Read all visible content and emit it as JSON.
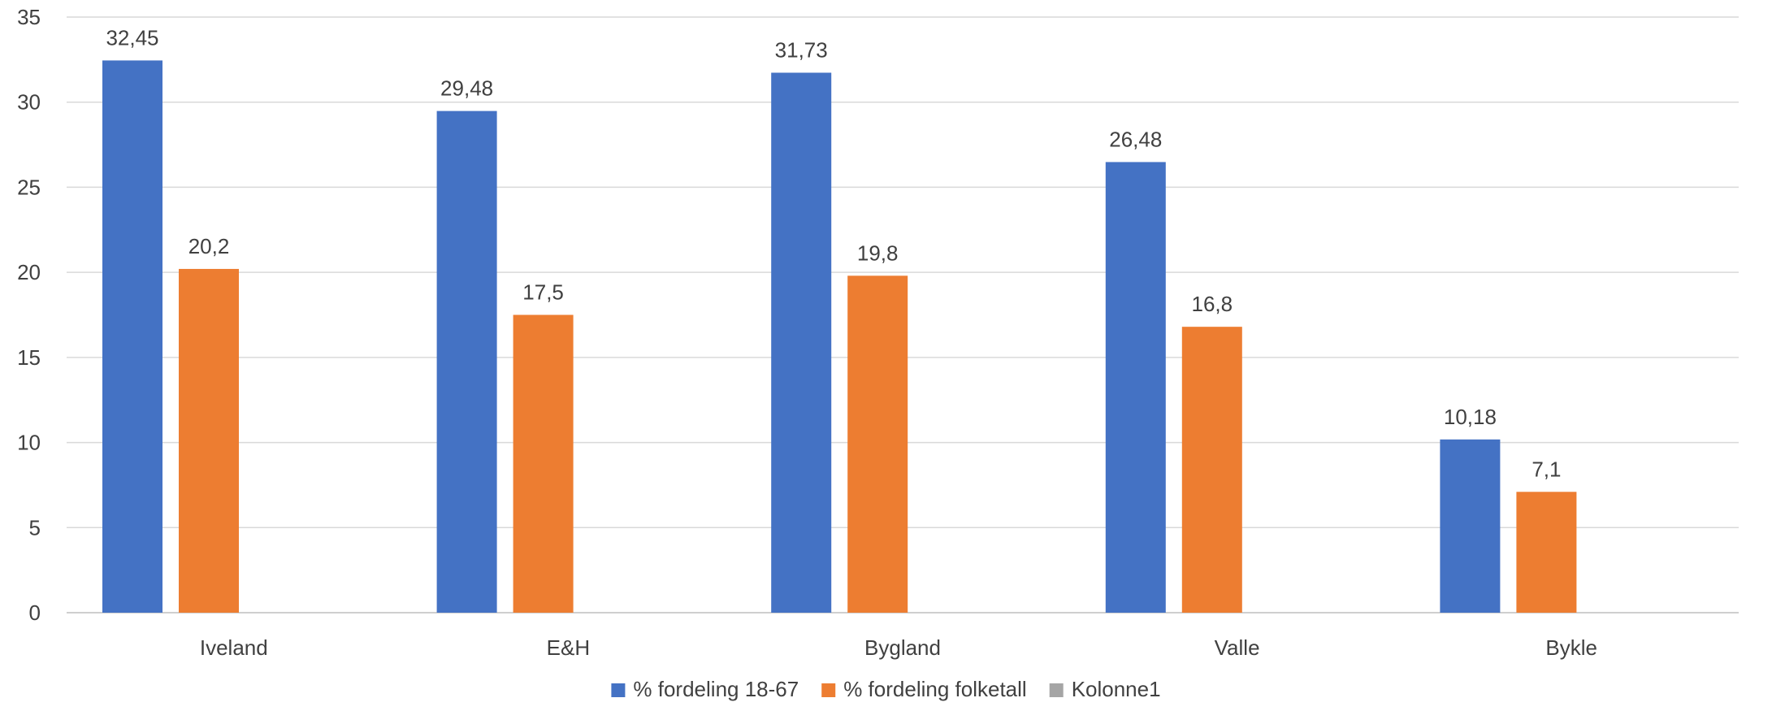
{
  "chart_data": {
    "type": "bar",
    "categories": [
      "Iveland",
      "E&H",
      "Bygland",
      "Valle",
      "Bykle"
    ],
    "series": [
      {
        "name": "% fordeling 18-67",
        "color": "#4472C4",
        "values": [
          32.45,
          29.48,
          31.73,
          26.48,
          10.18
        ],
        "labels": [
          "32,45",
          "29,48",
          "31,73",
          "26,48",
          "10,18"
        ]
      },
      {
        "name": "% fordeling folketall",
        "color": "#ED7D31",
        "values": [
          20.2,
          17.5,
          19.8,
          16.8,
          7.1
        ],
        "labels": [
          "20,2",
          "17,5",
          "19,8",
          "16,8",
          "7,1"
        ]
      },
      {
        "name": "Kolonne1",
        "color": "#A5A5A5",
        "values": [
          null,
          null,
          null,
          null,
          null
        ],
        "labels": [
          "",
          "",
          "",
          "",
          ""
        ]
      }
    ],
    "title": "",
    "xlabel": "",
    "ylabel": "",
    "ylim": [
      0,
      35
    ],
    "yticks": [
      0,
      5,
      10,
      15,
      20,
      25,
      30,
      35
    ],
    "grid": true,
    "legend_position": "bottom",
    "colors": {
      "gridline": "#D9D9D9",
      "axis": "#BFBFBF",
      "text": "#404040"
    }
  }
}
